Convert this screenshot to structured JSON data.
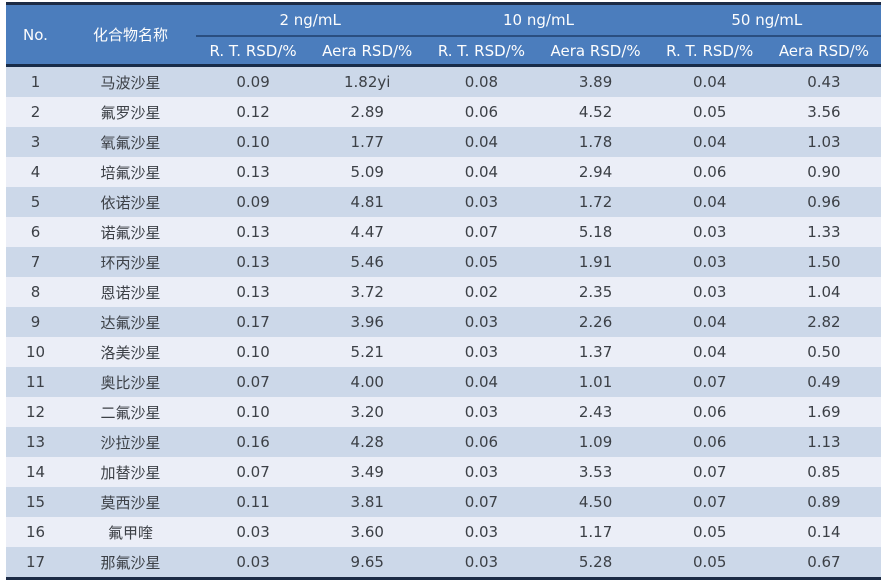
{
  "chart_data": {
    "type": "table",
    "title": "",
    "header": {
      "no": "No.",
      "compound": "化合物名称",
      "groups": [
        {
          "label": "2 ng/mL",
          "sub1": "R. T. RSD/%",
          "sub2": "Aera RSD/%"
        },
        {
          "label": "10 ng/mL",
          "sub1": "R. T. RSD/%",
          "sub2": "Aera RSD/%"
        },
        {
          "label": "50 ng/mL",
          "sub1": "R. T. RSD/%",
          "sub2": "Aera RSD/%"
        }
      ]
    },
    "rows": [
      {
        "no": "1",
        "compound": "马波沙星",
        "values": [
          "0.09",
          "1.82yi",
          "0.08",
          "3.89",
          "0.04",
          "0.43"
        ]
      },
      {
        "no": "2",
        "compound": "氟罗沙星",
        "values": [
          "0.12",
          "2.89",
          "0.06",
          "4.52",
          "0.05",
          "3.56"
        ]
      },
      {
        "no": "3",
        "compound": "氧氟沙星",
        "values": [
          "0.10",
          "1.77",
          "0.04",
          "1.78",
          "0.04",
          "1.03"
        ]
      },
      {
        "no": "4",
        "compound": "培氟沙星",
        "values": [
          "0.13",
          "5.09",
          "0.04",
          "2.94",
          "0.06",
          "0.90"
        ]
      },
      {
        "no": "5",
        "compound": "依诺沙星",
        "values": [
          "0.09",
          "4.81",
          "0.03",
          "1.72",
          "0.04",
          "0.96"
        ]
      },
      {
        "no": "6",
        "compound": "诺氟沙星",
        "values": [
          "0.13",
          "4.47",
          "0.07",
          "5.18",
          "0.03",
          "1.33"
        ]
      },
      {
        "no": "7",
        "compound": "环丙沙星",
        "values": [
          "0.13",
          "5.46",
          "0.05",
          "1.91",
          "0.03",
          "1.50"
        ]
      },
      {
        "no": "8",
        "compound": "恩诺沙星",
        "values": [
          "0.13",
          "3.72",
          "0.02",
          "2.35",
          "0.03",
          "1.04"
        ]
      },
      {
        "no": "9",
        "compound": "达氟沙星",
        "values": [
          "0.17",
          "3.96",
          "0.03",
          "2.26",
          "0.04",
          "2.82"
        ]
      },
      {
        "no": "10",
        "compound": "洛美沙星",
        "values": [
          "0.10",
          "5.21",
          "0.03",
          "1.37",
          "0.04",
          "0.50"
        ]
      },
      {
        "no": "11",
        "compound": "奥比沙星",
        "values": [
          "0.07",
          "4.00",
          "0.04",
          "1.01",
          "0.07",
          "0.49"
        ]
      },
      {
        "no": "12",
        "compound": "二氟沙星",
        "values": [
          "0.10",
          "3.20",
          "0.03",
          "2.43",
          "0.06",
          "1.69"
        ]
      },
      {
        "no": "13",
        "compound": "沙拉沙星",
        "values": [
          "0.16",
          "4.28",
          "0.06",
          "1.09",
          "0.06",
          "1.13"
        ]
      },
      {
        "no": "14",
        "compound": "加替沙星",
        "values": [
          "0.07",
          "3.49",
          "0.03",
          "3.53",
          "0.07",
          "0.85"
        ]
      },
      {
        "no": "15",
        "compound": "莫西沙星",
        "values": [
          "0.11",
          "3.81",
          "0.07",
          "4.50",
          "0.07",
          "0.89"
        ]
      },
      {
        "no": "16",
        "compound": "氟甲喹",
        "values": [
          "0.03",
          "3.60",
          "0.03",
          "1.17",
          "0.05",
          "0.14"
        ]
      },
      {
        "no": "17",
        "compound": "那氟沙星",
        "values": [
          "0.03",
          "9.65",
          "0.03",
          "5.28",
          "0.05",
          "0.67"
        ]
      }
    ]
  },
  "colors": {
    "header_bg": "#4b7dbd",
    "header_text": "#fdfdfd",
    "row_odd": "#ccd8e9",
    "row_even": "#ebeef7",
    "body_text": "#3c4046",
    "outer_rule": "#1c2b45",
    "group_rule": "#2a4e80"
  }
}
